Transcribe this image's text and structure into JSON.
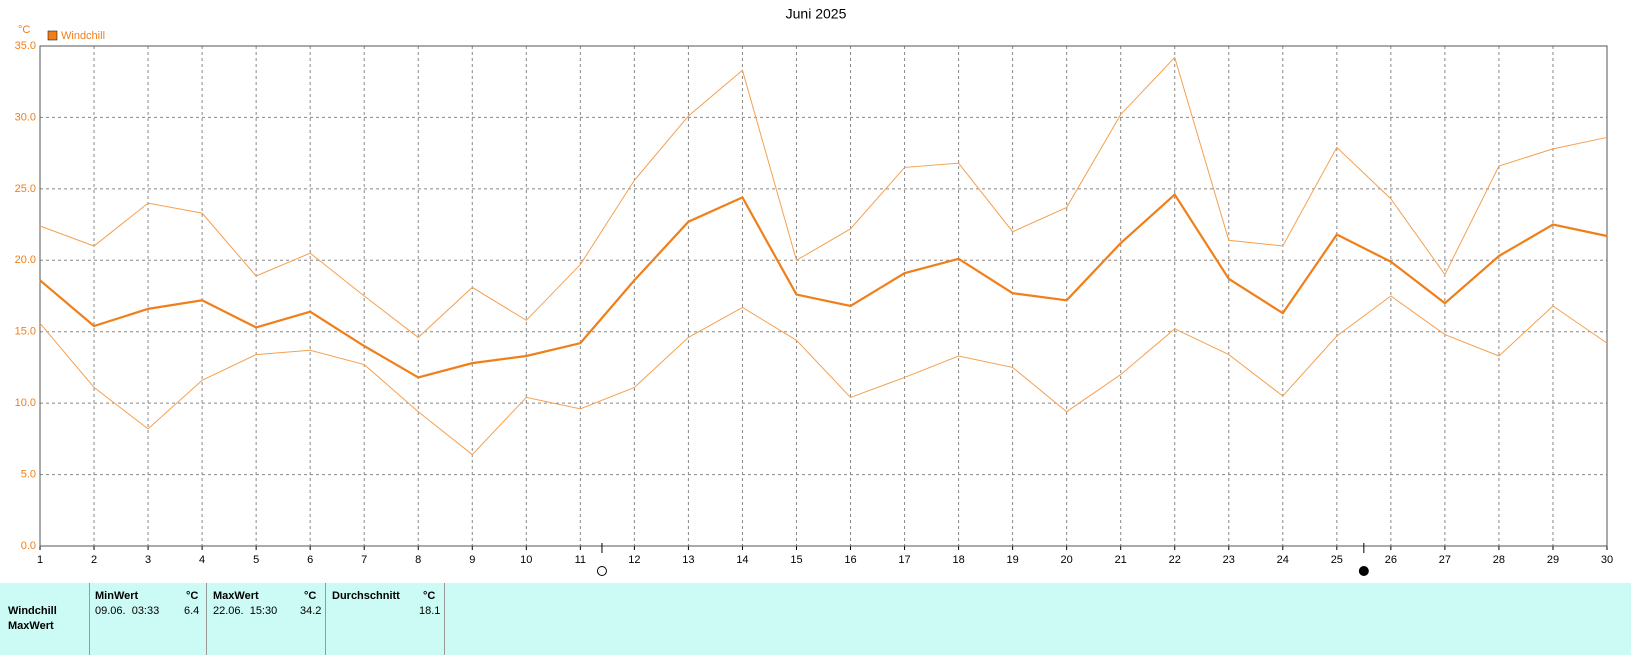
{
  "chart_data": {
    "type": "line",
    "title": "Juni 2025",
    "y_unit": "°C",
    "x": [
      1,
      2,
      3,
      4,
      5,
      6,
      7,
      8,
      9,
      10,
      11,
      12,
      13,
      14,
      15,
      16,
      17,
      18,
      19,
      20,
      21,
      22,
      23,
      24,
      25,
      26,
      27,
      28,
      29,
      30
    ],
    "series": [
      {
        "name": "Windchill",
        "color": "#f07f1a",
        "values": [
          18.6,
          15.4,
          16.6,
          17.2,
          15.3,
          16.4,
          14.0,
          11.8,
          12.8,
          13.3,
          14.2,
          18.6,
          22.7,
          24.4,
          17.6,
          16.8,
          19.1,
          20.1,
          17.7,
          17.2,
          21.2,
          24.6,
          18.7,
          16.3,
          21.8,
          19.9,
          17.0,
          20.3,
          22.5,
          21.7
        ],
        "max_values": [
          22.4,
          21.0,
          24.0,
          23.3,
          18.9,
          20.5,
          17.5,
          14.6,
          18.1,
          15.8,
          19.7,
          25.6,
          30.1,
          33.3,
          20.0,
          22.2,
          26.5,
          26.8,
          22.0,
          23.7,
          30.2,
          34.2,
          21.4,
          21.0,
          27.9,
          24.3,
          19.0,
          26.6,
          27.8,
          28.6
        ],
        "min_values": [
          15.6,
          11.1,
          8.2,
          11.6,
          13.4,
          13.7,
          12.7,
          9.4,
          6.4,
          10.4,
          9.6,
          11.1,
          14.6,
          16.7,
          14.4,
          10.4,
          11.8,
          13.3,
          12.5,
          9.4,
          12.0,
          15.2,
          13.4,
          10.5,
          14.7,
          17.5,
          14.8,
          13.3,
          16.8,
          14.2
        ]
      }
    ],
    "moon_markers": [
      11.4,
      25.5
    ],
    "xlim": [
      1,
      30
    ],
    "xticks": [
      1,
      2,
      3,
      4,
      5,
      6,
      7,
      8,
      9,
      10,
      11,
      12,
      13,
      14,
      15,
      16,
      17,
      18,
      19,
      20,
      21,
      22,
      23,
      24,
      25,
      26,
      27,
      28,
      29,
      30
    ],
    "ylim": [
      0,
      35
    ],
    "yticks": [
      {
        "value": 0,
        "label": "0.0"
      },
      {
        "value": 5,
        "label": "5.0"
      },
      {
        "value": 10,
        "label": "10.0"
      },
      {
        "value": 15,
        "label": "15.0"
      },
      {
        "value": 20,
        "label": "20.0"
      },
      {
        "value": 25,
        "label": "25.0"
      },
      {
        "value": 30,
        "label": "30.0"
      },
      {
        "value": 35,
        "label": "35.0"
      }
    ],
    "grid": true
  },
  "table": {
    "header": [
      "MinWert",
      "°C",
      "MaxWert",
      "°C",
      "Durchschnitt",
      "°C"
    ],
    "rows": [
      [
        "Windchill",
        "09.06.  03:33",
        6.4,
        "22.06.  15:30",
        34.2,
        18.1
      ],
      [
        "MaxWert"
      ]
    ]
  }
}
